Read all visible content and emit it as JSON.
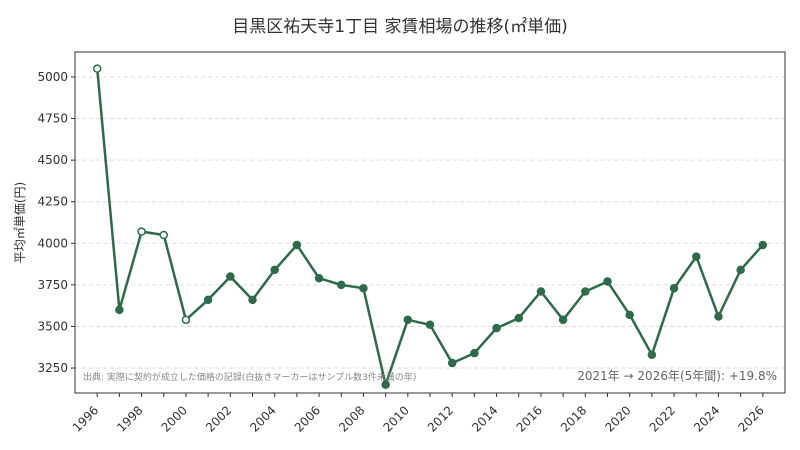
{
  "chart_data": {
    "type": "line",
    "title": "目黒区祐天寺1丁目 家賃相場の推移(㎡単価)",
    "ylabel": "平均㎡単価(円)",
    "xlabel": "",
    "ylim": [
      3100,
      5150
    ],
    "xlim": [
      1995,
      2027
    ],
    "y_ticks": [
      3250,
      3500,
      3750,
      4000,
      4250,
      4500,
      4750,
      5000
    ],
    "x_ticks": [
      1996,
      1998,
      2000,
      2002,
      2004,
      2006,
      2008,
      2010,
      2012,
      2014,
      2016,
      2018,
      2020,
      2022,
      2024,
      2026
    ],
    "grid": "horizontal-dashed",
    "series_color": "#2e6b4a",
    "points": [
      {
        "x": 1996,
        "y": 5050,
        "sample": true
      },
      {
        "x": 1997,
        "y": 3600,
        "sample": false
      },
      {
        "x": 1998,
        "y": 4070,
        "sample": true
      },
      {
        "x": 1999,
        "y": 4050,
        "sample": true
      },
      {
        "x": 2000,
        "y": 3540,
        "sample": true
      },
      {
        "x": 2001,
        "y": 3660,
        "sample": false
      },
      {
        "x": 2002,
        "y": 3800,
        "sample": false
      },
      {
        "x": 2003,
        "y": 3660,
        "sample": false
      },
      {
        "x": 2004,
        "y": 3840,
        "sample": false
      },
      {
        "x": 2005,
        "y": 3990,
        "sample": false
      },
      {
        "x": 2006,
        "y": 3790,
        "sample": false
      },
      {
        "x": 2007,
        "y": 3750,
        "sample": false
      },
      {
        "x": 2008,
        "y": 3730,
        "sample": false
      },
      {
        "x": 2009,
        "y": 3150,
        "sample": false
      },
      {
        "x": 2010,
        "y": 3540,
        "sample": false
      },
      {
        "x": 2011,
        "y": 3510,
        "sample": false
      },
      {
        "x": 2012,
        "y": 3280,
        "sample": false
      },
      {
        "x": 2013,
        "y": 3340,
        "sample": false
      },
      {
        "x": 2014,
        "y": 3490,
        "sample": false
      },
      {
        "x": 2015,
        "y": 3550,
        "sample": false
      },
      {
        "x": 2016,
        "y": 3710,
        "sample": false
      },
      {
        "x": 2017,
        "y": 3540,
        "sample": false
      },
      {
        "x": 2018,
        "y": 3710,
        "sample": false
      },
      {
        "x": 2019,
        "y": 3770,
        "sample": false
      },
      {
        "x": 2020,
        "y": 3570,
        "sample": false
      },
      {
        "x": 2021,
        "y": 3330,
        "sample": false
      },
      {
        "x": 2022,
        "y": 3730,
        "sample": false
      },
      {
        "x": 2023,
        "y": 3920,
        "sample": false
      },
      {
        "x": 2024,
        "y": 3560,
        "sample": false
      },
      {
        "x": 2025,
        "y": 3840,
        "sample": false
      },
      {
        "x": 2026,
        "y": 3990,
        "sample": false
      }
    ],
    "source_note": "出典: 実際に契約が成立した価格の記録(白抜きマーカーはサンプル数3件未満の年)",
    "summary_note": "2021年 → 2026年(5年間): +19.8%"
  }
}
